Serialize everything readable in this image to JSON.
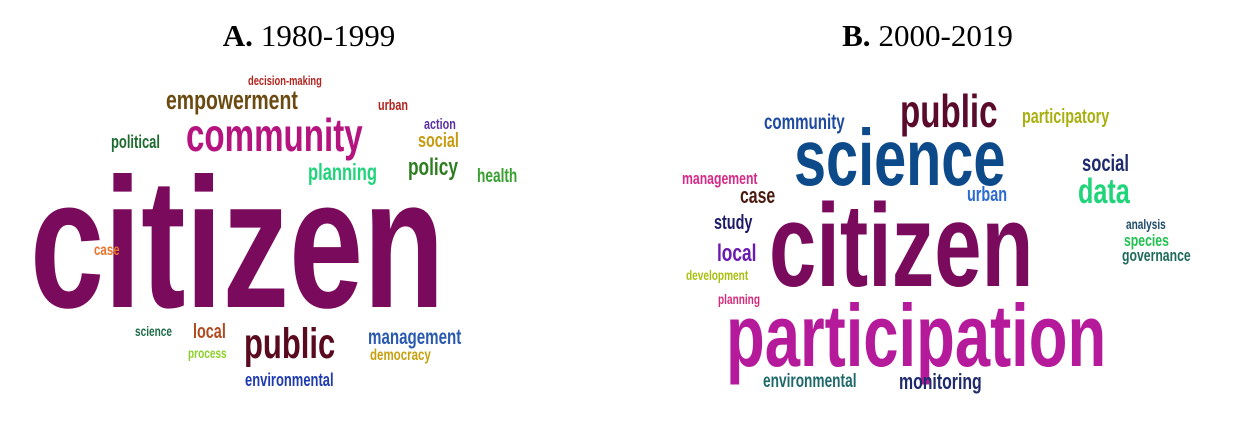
{
  "panels": [
    {
      "letter": "A.",
      "period": "1980-1999",
      "words": [
        {
          "text": "citizen",
          "color": "#7a0a5c"
        },
        {
          "text": "community",
          "color": "#b5137e"
        },
        {
          "text": "empowerment",
          "color": "#6b4a12"
        },
        {
          "text": "decision-making",
          "color": "#b0241f"
        },
        {
          "text": "urban",
          "color": "#b0241f"
        },
        {
          "text": "action",
          "color": "#5a2fa0"
        },
        {
          "text": "social",
          "color": "#c79a10"
        },
        {
          "text": "political",
          "color": "#1e6b30"
        },
        {
          "text": "planning",
          "color": "#20d47a"
        },
        {
          "text": "policy",
          "color": "#2e7d1e"
        },
        {
          "text": "health",
          "color": "#38a030"
        },
        {
          "text": "case",
          "color": "#e8742a"
        },
        {
          "text": "science",
          "color": "#1e6b4a"
        },
        {
          "text": "local",
          "color": "#b04a1e"
        },
        {
          "text": "process",
          "color": "#8dcf2a"
        },
        {
          "text": "public",
          "color": "#5a0a1e"
        },
        {
          "text": "management",
          "color": "#2a5ab0"
        },
        {
          "text": "democracy",
          "color": "#c7a010"
        },
        {
          "text": "environmental",
          "color": "#1e3ab0"
        }
      ]
    },
    {
      "letter": "B.",
      "period": "2000-2019",
      "words": [
        {
          "text": "public",
          "color": "#5a0a2a"
        },
        {
          "text": "participatory",
          "color": "#a8b010"
        },
        {
          "text": "community",
          "color": "#1e4aa0"
        },
        {
          "text": "science",
          "color": "#0d4a8a"
        },
        {
          "text": "social",
          "color": "#1e2a6a"
        },
        {
          "text": "management",
          "color": "#d42a8a"
        },
        {
          "text": "case",
          "color": "#4a1a10"
        },
        {
          "text": "urban",
          "color": "#2a6ad0"
        },
        {
          "text": "data",
          "color": "#20d47a"
        },
        {
          "text": "study",
          "color": "#1e1a6a"
        },
        {
          "text": "citizen",
          "color": "#7a0a5c"
        },
        {
          "text": "analysis",
          "color": "#1e4a6a"
        },
        {
          "text": "species",
          "color": "#20c050"
        },
        {
          "text": "governance",
          "color": "#1e6a5a"
        },
        {
          "text": "local",
          "color": "#6a1ab0"
        },
        {
          "text": "development",
          "color": "#a8c010"
        },
        {
          "text": "planning",
          "color": "#d42a7a"
        },
        {
          "text": "participation",
          "color": "#b51a9a"
        },
        {
          "text": "environmental",
          "color": "#1e6a6a"
        },
        {
          "text": "monitoring",
          "color": "#1e2a6a"
        }
      ]
    }
  ]
}
